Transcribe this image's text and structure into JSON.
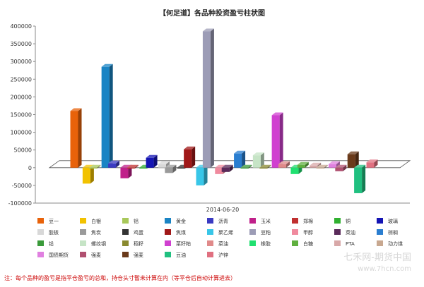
{
  "chart_data": {
    "type": "bar",
    "title": "【何足道】各品种投资盈亏柱状图",
    "x_category": "2014-06-20",
    "ylim": [
      -100000,
      400000
    ],
    "yticks": [
      -100000,
      -50000,
      0,
      50000,
      100000,
      150000,
      200000,
      250000,
      300000,
      350000,
      400000
    ],
    "legend_placement": "bottom",
    "series": [
      {
        "name": "豆一",
        "value": 160000,
        "color": "#e8620a"
      },
      {
        "name": "白银",
        "value": -45000,
        "color": "#f2c200"
      },
      {
        "name": "铝",
        "value": 0,
        "color": "#a8c85a"
      },
      {
        "name": "黄金",
        "value": 285000,
        "color": "#1a84c4"
      },
      {
        "name": "沥青",
        "value": 12000,
        "color": "#3a3ac2"
      },
      {
        "name": "玉米",
        "value": -30000,
        "color": "#c0208a"
      },
      {
        "name": "郑棉",
        "value": 0,
        "color": "#c03030"
      },
      {
        "name": "铜",
        "value": 0,
        "color": "#30b030"
      },
      {
        "name": "玻璃",
        "value": 28000,
        "color": "#1414b4"
      },
      {
        "name": "胶板",
        "value": 10000,
        "color": "#d8d8d8"
      },
      {
        "name": "焦炭",
        "value": -15000,
        "color": "#9a9a9a"
      },
      {
        "name": "鸡蛋",
        "value": 0,
        "color": "#333333"
      },
      {
        "name": "焦煤",
        "value": 52000,
        "color": "#a01818"
      },
      {
        "name": "聚乙烯",
        "value": -50000,
        "color": "#38c6e8"
      },
      {
        "name": "豆粕",
        "value": 385000,
        "color": "#9c9cb6"
      },
      {
        "name": "甲醇",
        "value": -18000,
        "color": "#f08a9e"
      },
      {
        "name": "菜油",
        "value": -12000,
        "color": "#5a2a5a"
      },
      {
        "name": "棕榈",
        "value": 40000,
        "color": "#2a7ed0"
      },
      {
        "name": "铅",
        "value": 0,
        "color": "#3a9a3a"
      },
      {
        "name": "螺纹钢",
        "value": 35000,
        "color": "#c6e4c6"
      },
      {
        "name": "稻籽",
        "value": 0,
        "color": "#8a8a30"
      },
      {
        "name": "菜籽粕",
        "value": 148000,
        "color": "#d040d0"
      },
      {
        "name": "菜油",
        "value": 10000,
        "color": "#e08a8a"
      },
      {
        "name": "橡胶",
        "value": -18000,
        "color": "#20e070"
      },
      {
        "name": "白糖",
        "value": 8000,
        "color": "#60b040"
      },
      {
        "name": "PTA",
        "value": 6000,
        "color": "#d8a8a8"
      },
      {
        "name": "动力煤",
        "value": 0,
        "color": "#c8a890"
      },
      {
        "name": "国债期货",
        "value": 10000,
        "color": "#e080e0"
      },
      {
        "name": "强麦",
        "value": -10000,
        "color": "#b05070"
      },
      {
        "name": "强麦",
        "value": 38000,
        "color": "#6a3a1a"
      },
      {
        "name": "豆油",
        "value": -72000,
        "color": "#20c080"
      },
      {
        "name": "沪锌",
        "value": 15000,
        "color": "#e07080"
      }
    ]
  },
  "footer": {
    "note": "注：每个品种的盈亏是指平仓盈亏的总和，持仓头寸暂未计算在内（等平仓后自动计算进去）",
    "watermark_line1": "七禾网-期货中国",
    "watermark_line2": "www.7hcn.com"
  }
}
